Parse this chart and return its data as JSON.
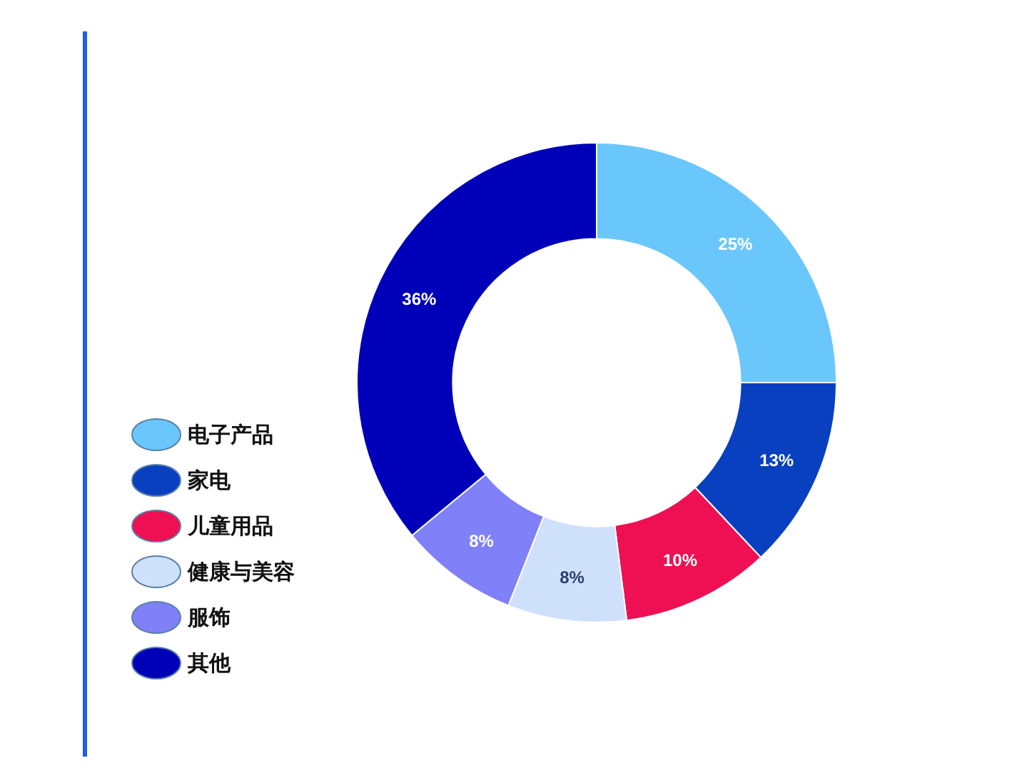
{
  "chart_data": {
    "type": "donut",
    "categories": [
      "电子产品",
      "家电",
      "儿童用品",
      "健康与美容",
      "服饰",
      "其他"
    ],
    "values": [
      25,
      13,
      10,
      8,
      8,
      36
    ],
    "colors": [
      "#6ac7fb",
      "#0840c0",
      "#ee1052",
      "#cfe0fa",
      "#8080f8",
      "#0000b8"
    ],
    "value_labels": [
      "25%",
      "13%",
      "10%",
      "8%",
      "8%",
      "36%"
    ],
    "legend": "left"
  }
}
